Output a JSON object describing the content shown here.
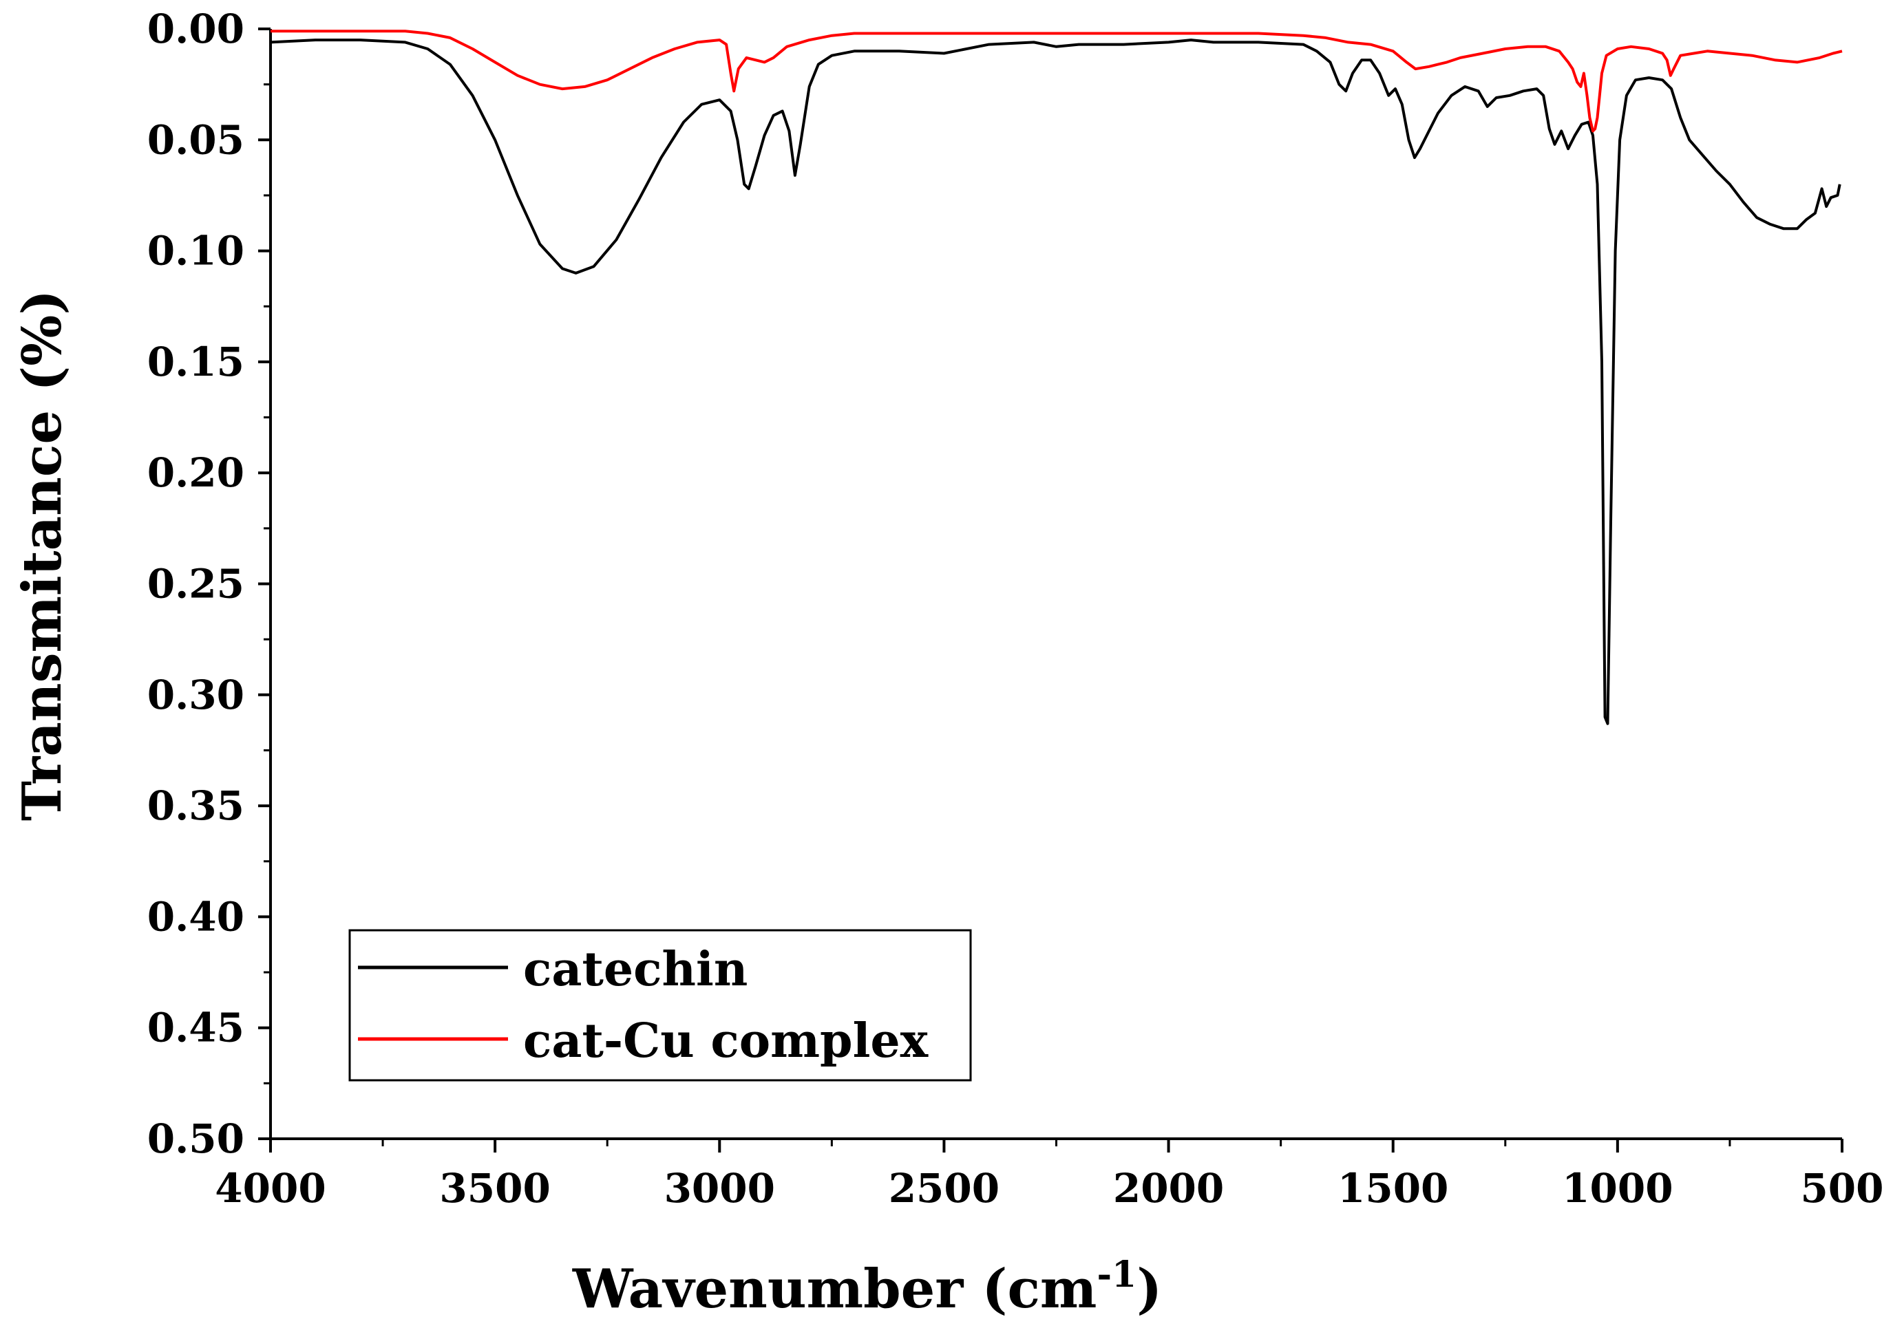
{
  "chart_data": {
    "type": "line",
    "title": "",
    "xlabel": "Wavenumber (cm",
    "xlabel_sup": "-1",
    "xlabel_close": ")",
    "ylabel": "Transmitance (%)",
    "xlim": [
      4000,
      500
    ],
    "ylim": [
      0.0,
      0.5
    ],
    "x_ticks": [
      4000,
      3500,
      3000,
      2500,
      2000,
      1500,
      1000,
      500
    ],
    "x_tick_labels": [
      "4000",
      "3500",
      "3000",
      "2500",
      "2000",
      "1500",
      "1000",
      "500"
    ],
    "y_ticks": [
      0.0,
      0.05,
      0.1,
      0.15,
      0.2,
      0.25,
      0.3,
      0.35,
      0.4,
      0.45,
      0.5
    ],
    "y_tick_labels": [
      "0.00",
      "0.05",
      "0.10",
      "0.15",
      "0.20",
      "0.25",
      "0.30",
      "0.35",
      "0.40",
      "0.45",
      "0.50"
    ],
    "grid": false,
    "legend_position": "bottom-left",
    "series": [
      {
        "name": "catechin",
        "color": "#000000",
        "points": [
          [
            4000,
            0.006
          ],
          [
            3900,
            0.005
          ],
          [
            3800,
            0.005
          ],
          [
            3700,
            0.006
          ],
          [
            3650,
            0.009
          ],
          [
            3600,
            0.016
          ],
          [
            3550,
            0.03
          ],
          [
            3500,
            0.05
          ],
          [
            3450,
            0.075
          ],
          [
            3400,
            0.097
          ],
          [
            3350,
            0.108
          ],
          [
            3320,
            0.11
          ],
          [
            3280,
            0.107
          ],
          [
            3230,
            0.095
          ],
          [
            3180,
            0.077
          ],
          [
            3130,
            0.058
          ],
          [
            3080,
            0.042
          ],
          [
            3040,
            0.034
          ],
          [
            3000,
            0.032
          ],
          [
            2975,
            0.037
          ],
          [
            2960,
            0.05
          ],
          [
            2945,
            0.07
          ],
          [
            2935,
            0.072
          ],
          [
            2920,
            0.062
          ],
          [
            2900,
            0.048
          ],
          [
            2880,
            0.039
          ],
          [
            2860,
            0.037
          ],
          [
            2845,
            0.046
          ],
          [
            2832,
            0.066
          ],
          [
            2820,
            0.052
          ],
          [
            2800,
            0.026
          ],
          [
            2780,
            0.016
          ],
          [
            2750,
            0.012
          ],
          [
            2700,
            0.01
          ],
          [
            2600,
            0.01
          ],
          [
            2500,
            0.011
          ],
          [
            2400,
            0.007
          ],
          [
            2300,
            0.006
          ],
          [
            2250,
            0.008
          ],
          [
            2200,
            0.007
          ],
          [
            2100,
            0.007
          ],
          [
            2000,
            0.006
          ],
          [
            1950,
            0.005
          ],
          [
            1900,
            0.006
          ],
          [
            1800,
            0.006
          ],
          [
            1700,
            0.007
          ],
          [
            1670,
            0.01
          ],
          [
            1640,
            0.015
          ],
          [
            1620,
            0.025
          ],
          [
            1605,
            0.028
          ],
          [
            1590,
            0.02
          ],
          [
            1570,
            0.014
          ],
          [
            1550,
            0.014
          ],
          [
            1530,
            0.02
          ],
          [
            1510,
            0.03
          ],
          [
            1495,
            0.027
          ],
          [
            1480,
            0.034
          ],
          [
            1465,
            0.05
          ],
          [
            1452,
            0.058
          ],
          [
            1440,
            0.054
          ],
          [
            1420,
            0.046
          ],
          [
            1400,
            0.038
          ],
          [
            1370,
            0.03
          ],
          [
            1340,
            0.026
          ],
          [
            1310,
            0.028
          ],
          [
            1290,
            0.035
          ],
          [
            1270,
            0.031
          ],
          [
            1240,
            0.03
          ],
          [
            1210,
            0.028
          ],
          [
            1180,
            0.027
          ],
          [
            1165,
            0.03
          ],
          [
            1152,
            0.045
          ],
          [
            1140,
            0.052
          ],
          [
            1125,
            0.046
          ],
          [
            1110,
            0.054
          ],
          [
            1095,
            0.048
          ],
          [
            1080,
            0.043
          ],
          [
            1065,
            0.042
          ],
          [
            1055,
            0.048
          ],
          [
            1045,
            0.07
          ],
          [
            1035,
            0.15
          ],
          [
            1028,
            0.31
          ],
          [
            1022,
            0.313
          ],
          [
            1015,
            0.22
          ],
          [
            1005,
            0.1
          ],
          [
            995,
            0.05
          ],
          [
            980,
            0.03
          ],
          [
            960,
            0.023
          ],
          [
            930,
            0.022
          ],
          [
            900,
            0.023
          ],
          [
            880,
            0.027
          ],
          [
            860,
            0.04
          ],
          [
            840,
            0.05
          ],
          [
            810,
            0.057
          ],
          [
            780,
            0.064
          ],
          [
            750,
            0.07
          ],
          [
            720,
            0.078
          ],
          [
            690,
            0.085
          ],
          [
            660,
            0.088
          ],
          [
            630,
            0.09
          ],
          [
            600,
            0.09
          ],
          [
            580,
            0.086
          ],
          [
            560,
            0.083
          ],
          [
            545,
            0.072
          ],
          [
            535,
            0.08
          ],
          [
            525,
            0.076
          ],
          [
            510,
            0.075
          ],
          [
            505,
            0.07
          ]
        ]
      },
      {
        "name": "cat-Cu complex",
        "color": "#ff0000",
        "points": [
          [
            4000,
            0.001
          ],
          [
            3800,
            0.001
          ],
          [
            3700,
            0.001
          ],
          [
            3650,
            0.002
          ],
          [
            3600,
            0.004
          ],
          [
            3550,
            0.009
          ],
          [
            3500,
            0.015
          ],
          [
            3450,
            0.021
          ],
          [
            3400,
            0.025
          ],
          [
            3350,
            0.027
          ],
          [
            3300,
            0.026
          ],
          [
            3250,
            0.023
          ],
          [
            3200,
            0.018
          ],
          [
            3150,
            0.013
          ],
          [
            3100,
            0.009
          ],
          [
            3050,
            0.006
          ],
          [
            3000,
            0.005
          ],
          [
            2985,
            0.007
          ],
          [
            2975,
            0.02
          ],
          [
            2968,
            0.028
          ],
          [
            2958,
            0.018
          ],
          [
            2940,
            0.013
          ],
          [
            2920,
            0.014
          ],
          [
            2900,
            0.015
          ],
          [
            2880,
            0.013
          ],
          [
            2850,
            0.008
          ],
          [
            2800,
            0.005
          ],
          [
            2750,
            0.003
          ],
          [
            2700,
            0.002
          ],
          [
            2500,
            0.002
          ],
          [
            2300,
            0.002
          ],
          [
            2100,
            0.002
          ],
          [
            2000,
            0.002
          ],
          [
            1800,
            0.002
          ],
          [
            1700,
            0.003
          ],
          [
            1650,
            0.004
          ],
          [
            1600,
            0.006
          ],
          [
            1550,
            0.007
          ],
          [
            1500,
            0.01
          ],
          [
            1470,
            0.015
          ],
          [
            1450,
            0.018
          ],
          [
            1420,
            0.017
          ],
          [
            1400,
            0.016
          ],
          [
            1380,
            0.015
          ],
          [
            1350,
            0.013
          ],
          [
            1300,
            0.011
          ],
          [
            1250,
            0.009
          ],
          [
            1200,
            0.008
          ],
          [
            1160,
            0.008
          ],
          [
            1130,
            0.01
          ],
          [
            1110,
            0.015
          ],
          [
            1100,
            0.018
          ],
          [
            1090,
            0.024
          ],
          [
            1082,
            0.026
          ],
          [
            1075,
            0.02
          ],
          [
            1068,
            0.03
          ],
          [
            1062,
            0.04
          ],
          [
            1055,
            0.046
          ],
          [
            1050,
            0.045
          ],
          [
            1045,
            0.04
          ],
          [
            1040,
            0.03
          ],
          [
            1035,
            0.02
          ],
          [
            1025,
            0.012
          ],
          [
            1000,
            0.009
          ],
          [
            970,
            0.008
          ],
          [
            930,
            0.009
          ],
          [
            900,
            0.011
          ],
          [
            890,
            0.014
          ],
          [
            882,
            0.021
          ],
          [
            875,
            0.018
          ],
          [
            860,
            0.012
          ],
          [
            830,
            0.011
          ],
          [
            800,
            0.01
          ],
          [
            750,
            0.011
          ],
          [
            700,
            0.012
          ],
          [
            650,
            0.014
          ],
          [
            600,
            0.015
          ],
          [
            550,
            0.013
          ],
          [
            520,
            0.011
          ],
          [
            500,
            0.01
          ]
        ]
      }
    ]
  }
}
